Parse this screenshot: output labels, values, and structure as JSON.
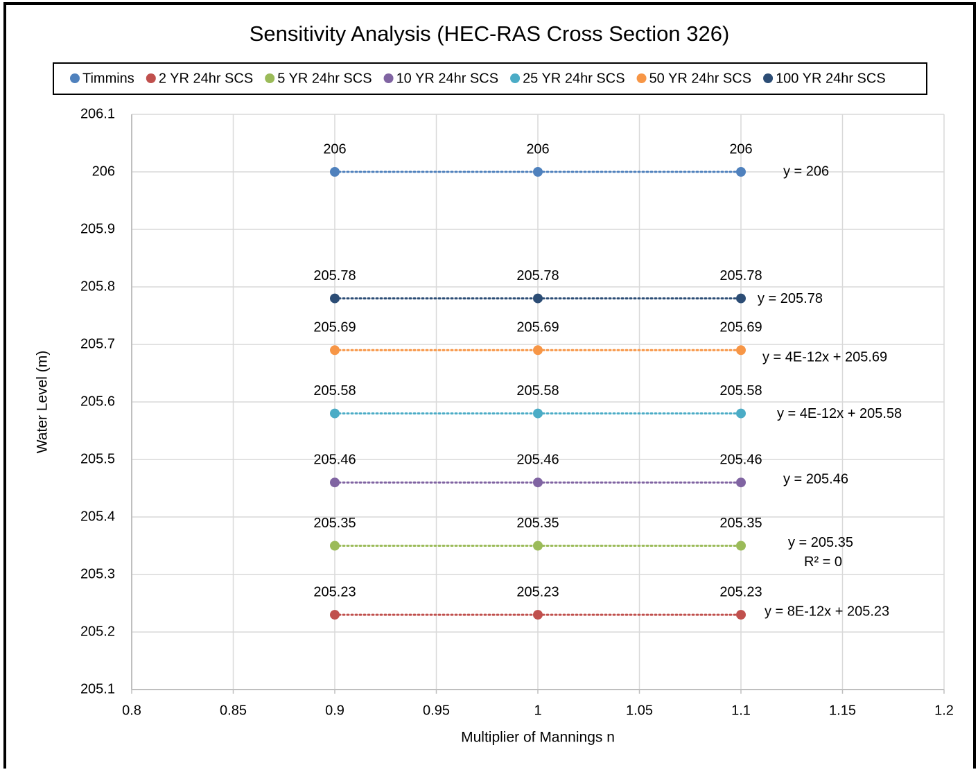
{
  "chart_data": {
    "type": "scatter",
    "title": "Sensitivity Analysis  (HEC-RAS Cross Section 326)",
    "x_label": "Multiplier of Mannings n",
    "y_label": "Water Level (m)",
    "x": [
      0.9,
      1,
      1.1
    ],
    "xlim": [
      0.8,
      1.2
    ],
    "xticks": [
      0.8,
      0.85,
      0.9,
      0.95,
      1,
      1.05,
      1.1,
      1.15,
      1.2
    ],
    "ylim": [
      205.1,
      206.1
    ],
    "yticks": [
      205.1,
      205.2,
      205.3,
      205.4,
      205.5,
      205.6,
      205.7,
      205.8,
      205.9,
      206,
      206.1
    ],
    "grid": true,
    "legend": "top",
    "series": [
      {
        "name": "Timmins",
        "color": "#4f81bd",
        "values": [
          206,
          206,
          206
        ],
        "trendline_label": "y = 206"
      },
      {
        "name": "2 YR 24hr SCS",
        "color": "#c0504d",
        "values": [
          205.23,
          205.23,
          205.23
        ],
        "trendline_label": "y = 8E-12x + 205.23"
      },
      {
        "name": "5 YR 24hr SCS",
        "color": "#9bbb59",
        "values": [
          205.35,
          205.35,
          205.35
        ],
        "trendline_label": "y = 205.35",
        "r2_label": "R² = 0"
      },
      {
        "name": "10 YR 24hr SCS",
        "color": "#8064a2",
        "values": [
          205.46,
          205.46,
          205.46
        ],
        "trendline_label": "y = 205.46"
      },
      {
        "name": "25 YR 24hr SCS",
        "color": "#4bacc6",
        "values": [
          205.58,
          205.58,
          205.58
        ],
        "trendline_label": "y = 4E-12x + 205.58"
      },
      {
        "name": "50 YR 24hr SCS",
        "color": "#f79646",
        "values": [
          205.69,
          205.69,
          205.69
        ],
        "trendline_label": "y = 4E-12x + 205.69"
      },
      {
        "name": "100 YR 24hr SCS",
        "color": "#2c4d75",
        "values": [
          205.78,
          205.78,
          205.78
        ],
        "trendline_label": "y = 205.78"
      }
    ]
  }
}
